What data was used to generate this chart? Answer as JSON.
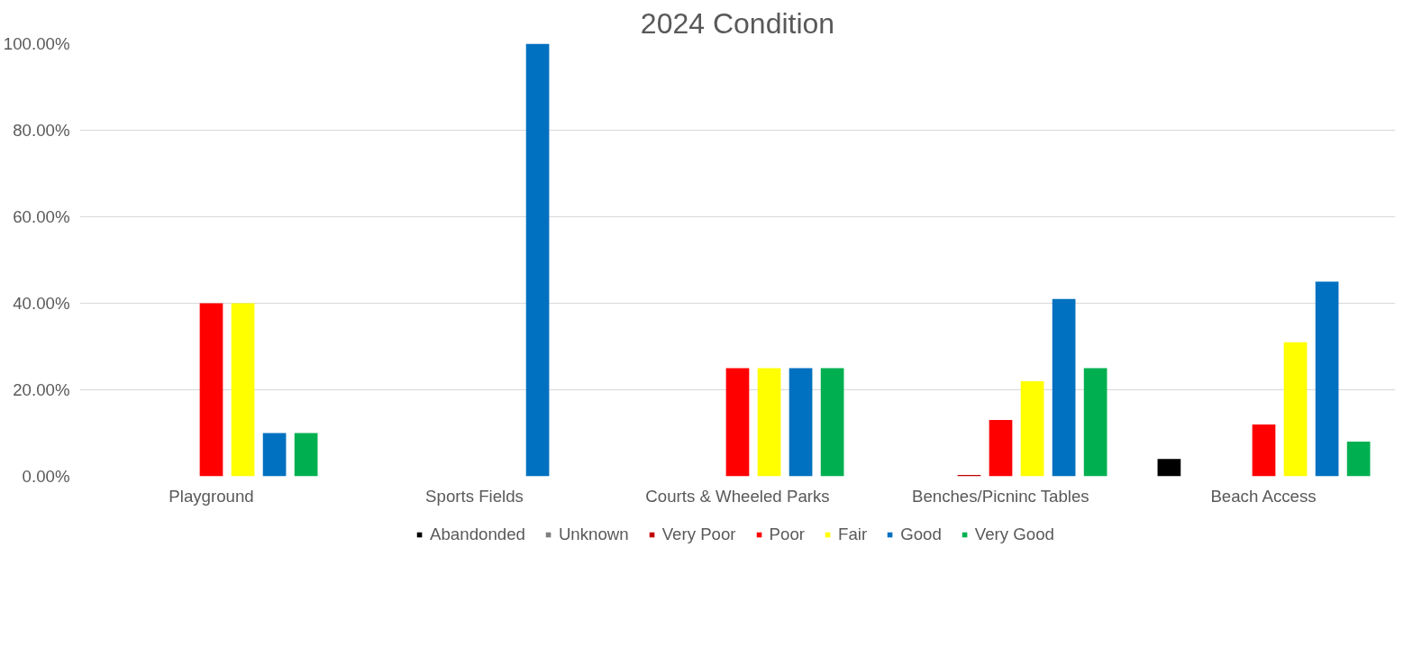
{
  "chart_data": {
    "type": "bar",
    "title": "2024 Condition",
    "categories": [
      "Playground",
      "Sports Fields",
      "Courts & Wheeled Parks",
      "Benches/Picninc Tables",
      "Beach Access"
    ],
    "series": [
      {
        "name": "Abandonded",
        "color": "#000000",
        "values": [
          0,
          0,
          0,
          0,
          4
        ]
      },
      {
        "name": "Unknown",
        "color": "#808080",
        "values": [
          0,
          0,
          0,
          0,
          0
        ]
      },
      {
        "name": "Very Poor",
        "color": "#c00000",
        "values": [
          0,
          0,
          0,
          0.3,
          0
        ]
      },
      {
        "name": "Poor",
        "color": "#ff0000",
        "values": [
          40,
          0,
          25,
          13,
          12
        ]
      },
      {
        "name": "Fair",
        "color": "#ffff00",
        "values": [
          40,
          0,
          25,
          22,
          31
        ]
      },
      {
        "name": "Good",
        "color": "#0070c0",
        "values": [
          10,
          100,
          25,
          41,
          45
        ]
      },
      {
        "name": "Very Good",
        "color": "#00b050",
        "values": [
          10,
          0,
          25,
          25,
          8
        ]
      }
    ],
    "ylim": [
      0,
      100
    ],
    "yticks": [
      {
        "value": 0,
        "label": "0.00%"
      },
      {
        "value": 20,
        "label": "20.00%"
      },
      {
        "value": 40,
        "label": "40.00%"
      },
      {
        "value": 60,
        "label": "60.00%"
      },
      {
        "value": 80,
        "label": "80.00%"
      },
      {
        "value": 100,
        "label": "100.00%"
      }
    ],
    "grid": "y",
    "legend": "bottom"
  }
}
